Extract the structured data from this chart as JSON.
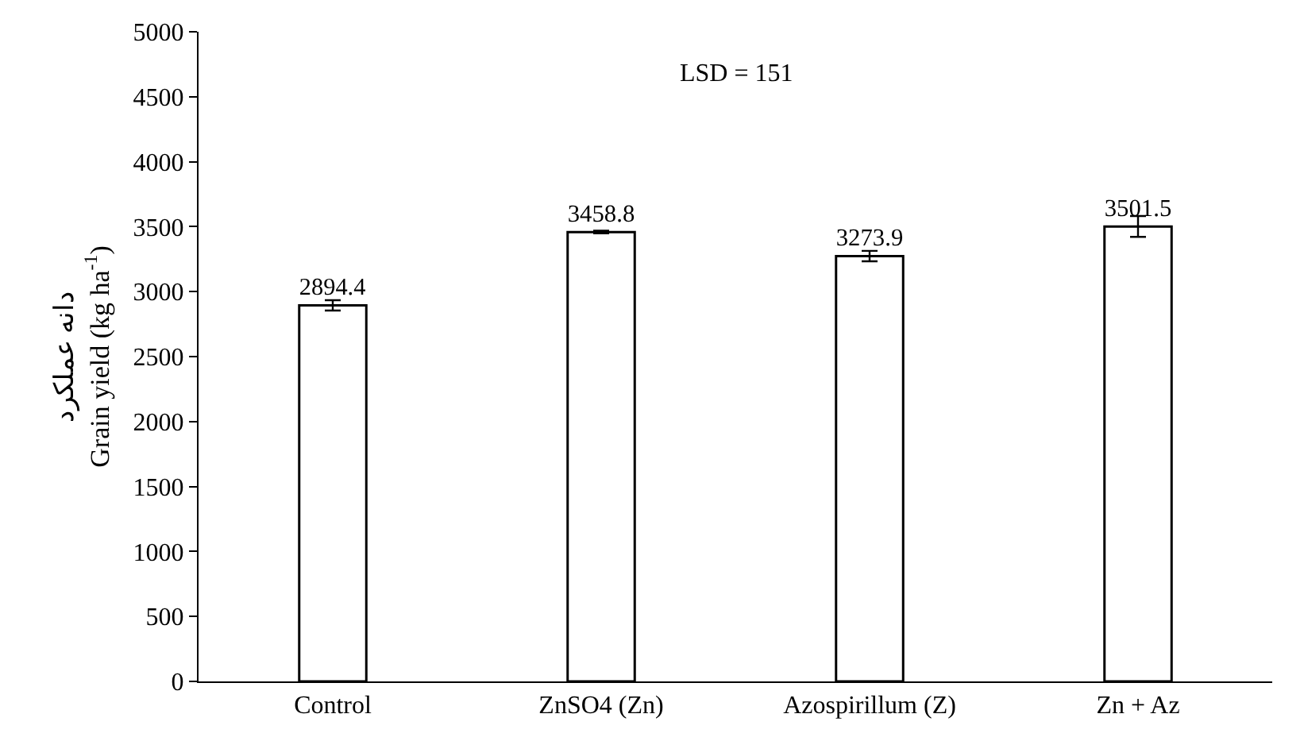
{
  "chart_data": {
    "type": "bar",
    "categories": [
      "Control",
      "ZnSO4 (Zn)",
      "Azospirillum (Z)",
      "Zn + Az"
    ],
    "values": [
      2894.4,
      3458.8,
      3273.9,
      3501.5
    ],
    "errors": [
      40,
      10,
      40,
      80
    ],
    "color": "#ffffff",
    "data_labels": true,
    "ylabel": "دانه عملکرد\nGrain yield (kg ha$^{-1}$)",
    "ylim": [
      0,
      5000
    ],
    "yticks": [
      0,
      500,
      1000,
      1500,
      2000,
      2500,
      3000,
      3500,
      4000,
      4500,
      5000
    ],
    "annotations": [
      "LSD = 151"
    ],
    "grid": false,
    "legend": false
  }
}
